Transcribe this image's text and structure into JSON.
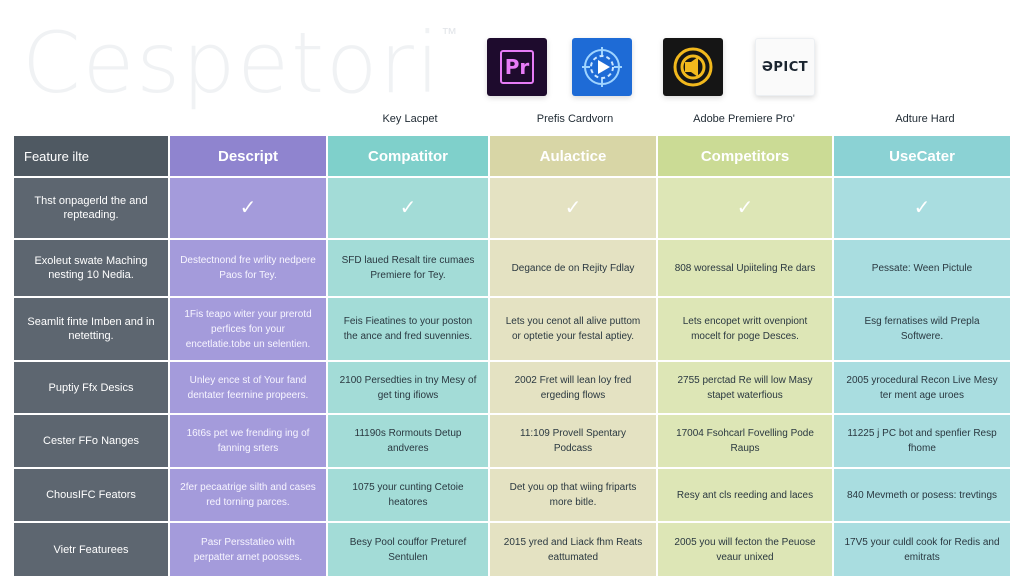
{
  "watermark": {
    "text": "Cespetori",
    "mark": "™"
  },
  "logos": [
    {
      "name": "premiere-pro-logo",
      "text": "Pr",
      "color": "#1e0b2d",
      "accent": "#e77cf7"
    },
    {
      "name": "blue-media-logo",
      "icon": "play-target-icon",
      "color": "#1e6bd6"
    },
    {
      "name": "gold-speaker-logo",
      "icon": "speaker-ring-icon",
      "color": "#151515",
      "accent": "#f1b81d"
    },
    {
      "name": "pict-logo",
      "text": "ƏPICT"
    }
  ],
  "top_labels": [
    "Key Lacpet",
    "Prefis Cardvorn",
    "Adobe Premiere Pro'",
    "Adture Hard"
  ],
  "table": {
    "headers": [
      "Feature ilte",
      "Descript",
      "Compatitor",
      "Aulactice",
      "Competitors",
      "UseCater"
    ],
    "check_row": {
      "feature": "Thst onpagerld the and repteading.",
      "values": [
        "✓",
        "✓",
        "✓",
        "✓",
        "✓"
      ]
    },
    "rows": [
      {
        "feature": "Exoleut swate Maching nesting 10 Nedia.",
        "cells": [
          "Destectnond fre wrlity nedpere Paos for Tey.",
          "SFD laued Resalt tire cumaes Premiere for Tey.",
          "Degance de on Rejity Fdlay",
          "808 woressal Upiiteling Re dars",
          "Pessate: Ween Pictule"
        ]
      },
      {
        "feature": "Seamlit finte Imben and in netetting.",
        "cells": [
          "1Fis teapo witer your prerotd perfices fon your encetlatie.tobe un selentien.",
          "Feis Fieatines to your poston the ance and fred suvennies.",
          "Lets you cenot all alive puttom or optetie your festal aptiey.",
          "Lets encopet writt ovenpiont mocelt for poge Desces.",
          "Esg fernatises wild Prepla Softwere."
        ]
      },
      {
        "feature": "Puptiy Ffx Desics",
        "cells": [
          "Unley ence st of Your fand dentater feernine propeers.",
          "2100 Persedties in tny Mesy of get ting ifiows",
          "2002 Fret will lean loy fred ergeding flows",
          "2755 perctad Re will low Masy stapet waterfious",
          "2005 yrocedural Recon Live Mesy ter ment age uroes"
        ]
      },
      {
        "feature": "Cester FFo Nanges",
        "cells": [
          "16t6s pet we frending ing of fanning srters",
          "11190s Rormouts Detup andveres",
          "11:109 Provell Spentary Podcass",
          "17004 Fsohcarl Fovelling Pode Raups",
          "11225 j PC bot and spenfier Resp fhome"
        ]
      },
      {
        "feature": "ChousIFC Feators",
        "cells": [
          "2fer pecaatrige silth and cases red torning parces.",
          "1075 your cunting Cetoie heatores",
          "Det you op that wiing friparts more bitle.",
          "Resy ant cls reeding and laces",
          "840 Mevmeth or posess: trevtings"
        ]
      },
      {
        "feature": "Vietr Featurees",
        "cells": [
          "Pasr Persstatieo with perpatter arnet poosses.",
          "Besy Pool couffor Preturef Sentulen",
          "2015 yred and Liack fhm Reats eattumated",
          "2005 you will fecton the Peuose veaur unixed",
          "17V5 your culdl cook for Redis and emitrats"
        ]
      }
    ]
  }
}
